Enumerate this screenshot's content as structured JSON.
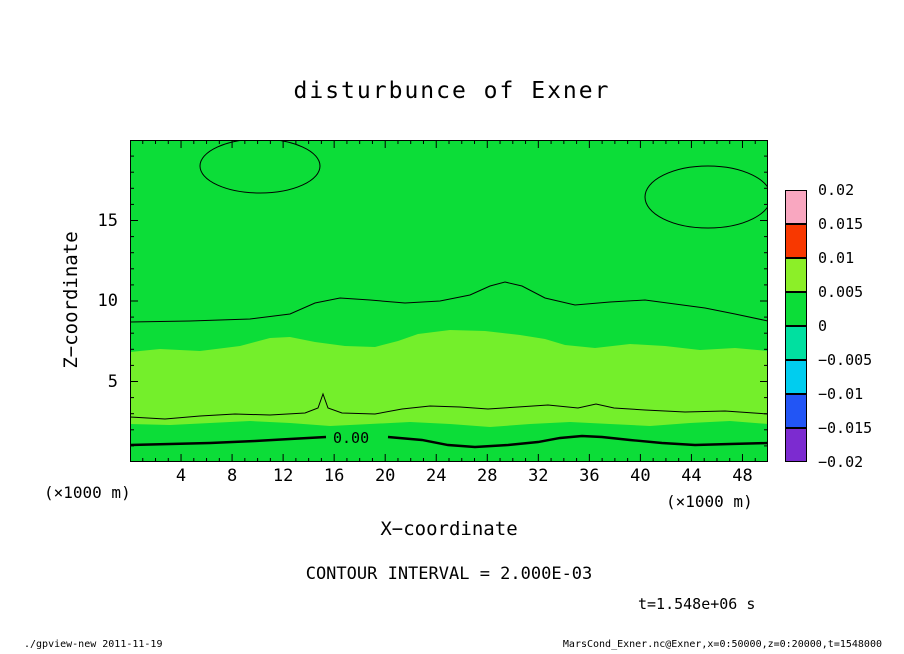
{
  "title": "disturbunce of Exner",
  "chart_data": {
    "type": "heatmap",
    "plot_kind": "filled contour section",
    "title": "disturbunce of Exner",
    "xlabel": "X−coordinate",
    "ylabel": "Z−coordinate",
    "x_axis_unit_left": "(×1000 m)",
    "x_axis_unit_right": "(×1000 m)",
    "xlim": [
      0,
      50
    ],
    "ylim": [
      0,
      20
    ],
    "x_ticks": [
      4,
      8,
      12,
      16,
      20,
      24,
      28,
      32,
      36,
      40,
      44,
      48
    ],
    "y_ticks": [
      5,
      10,
      15
    ],
    "x_minor_step": 1,
    "y_minor_step": 1,
    "grid": false,
    "contour_interval": 0.002,
    "contour_interval_label": "CONTOUR INTERVAL = 2.000E-03",
    "time_label": "t=1.548e+06 s",
    "zero_contour_label": "0.00",
    "field_colors": {
      "main": "#0cdd38",
      "band": "#74ef2b"
    },
    "colorbar": {
      "position": "right",
      "labels_top_to_bottom": [
        "0.02",
        "0.015",
        "0.01",
        "0.005",
        "0",
        "−0.005",
        "−0.01",
        "−0.015",
        "−0.02"
      ],
      "colors_top_to_bottom": [
        "#f9a7c0",
        "#f83800",
        "#8cef28",
        "#0cdd38",
        "#00e0a0",
        "#00cdef",
        "#2255f5",
        "#7c2bd0"
      ]
    }
  },
  "footer": {
    "left": "./gpview-new  2011-11-19",
    "right": "MarsCond_Exner.nc@Exner,x=0:50000,z=0:20000,t=1548000"
  }
}
